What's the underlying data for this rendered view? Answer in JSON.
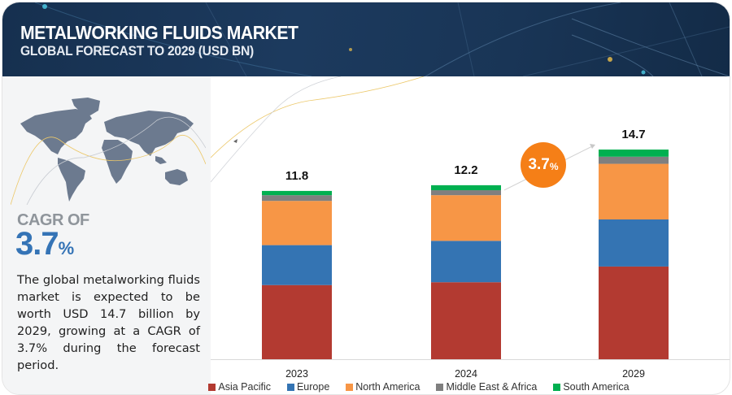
{
  "header": {
    "title": "METALWORKING FLUIDS MARKET",
    "subtitle": "GLOBAL FORECAST TO 2029 (USD BN)"
  },
  "sidebar": {
    "map_icon": "world-map-icon",
    "cagr_label": "CAGR OF",
    "cagr_value": "3.7",
    "cagr_unit": "%",
    "description": "The global metalworking fluids market is expected to be worth USD 14.7 billion by 2029, growing at a CAGR of 3.7% during the forecast period."
  },
  "growth_bubble": {
    "value": "3.7",
    "unit": "%",
    "color": "#f57f17"
  },
  "chart_data": {
    "type": "bar",
    "stacked": true,
    "title": "METALWORKING FLUIDS MARKET",
    "subtitle": "GLOBAL FORECAST TO 2029 (USD BN)",
    "xlabel": "",
    "ylabel": "",
    "ylim": [
      0,
      16
    ],
    "grid": false,
    "legend_position": "bottom",
    "categories": [
      "2023",
      "2024",
      "2029"
    ],
    "totals": [
      "11.8",
      "12.2",
      "14.7"
    ],
    "total_values": [
      11.8,
      12.2,
      14.7
    ],
    "series": [
      {
        "name": "Asia Pacific",
        "color": "#b33a31",
        "values": [
          5.2,
          5.4,
          6.5
        ]
      },
      {
        "name": "Europe",
        "color": "#3474b3",
        "values": [
          2.8,
          2.9,
          3.3
        ]
      },
      {
        "name": "North America",
        "color": "#f79646",
        "values": [
          3.1,
          3.2,
          3.9
        ]
      },
      {
        "name": "Middle East & Africa",
        "color": "#7f7f7f",
        "values": [
          0.4,
          0.35,
          0.5
        ]
      },
      {
        "name": "South America",
        "color": "#00b050",
        "values": [
          0.3,
          0.35,
          0.5
        ]
      }
    ]
  }
}
